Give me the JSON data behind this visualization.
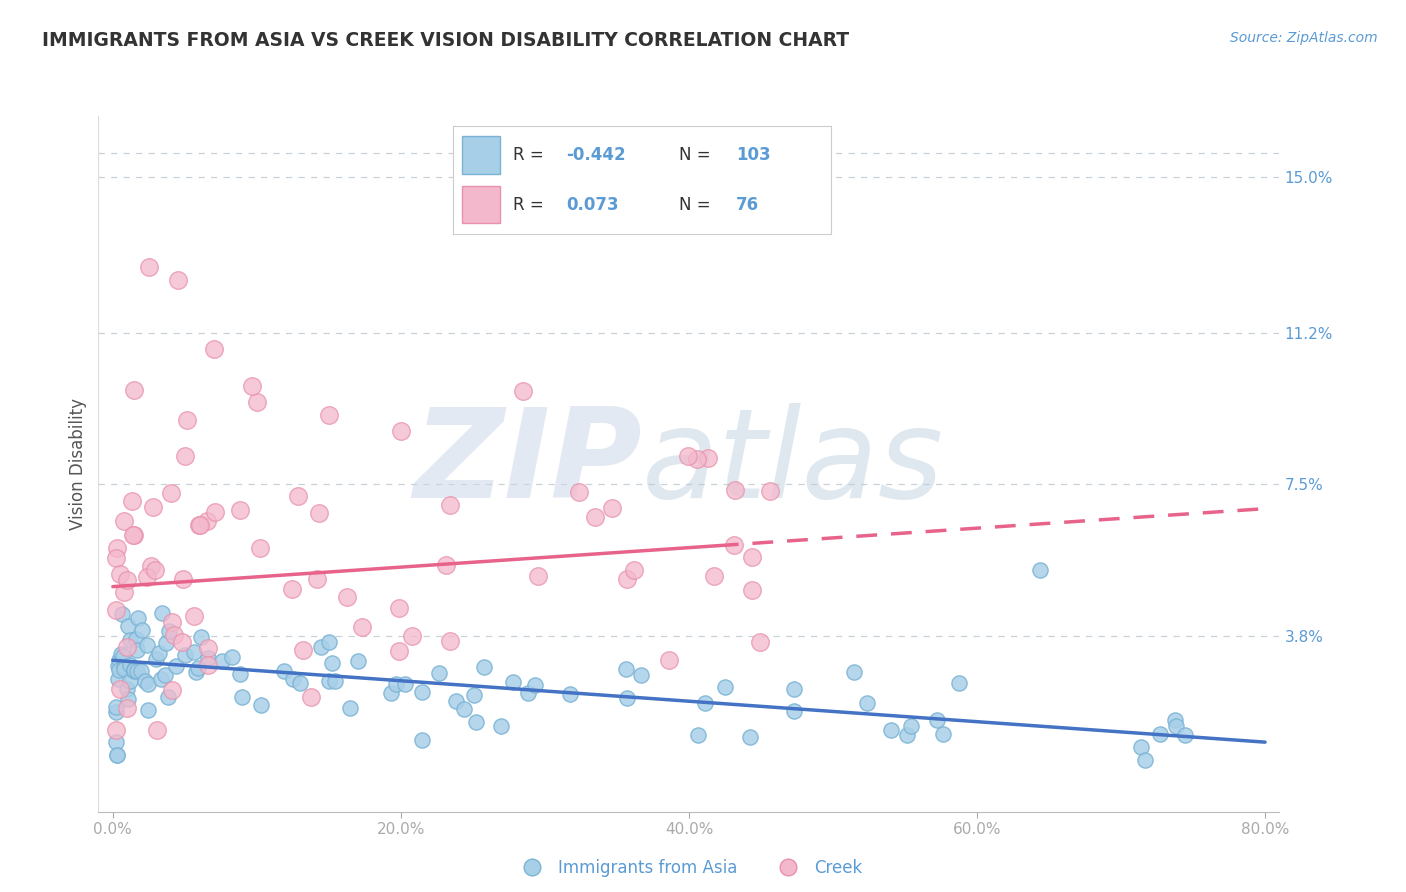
{
  "title": "IMMIGRANTS FROM ASIA VS CREEK VISION DISABILITY CORRELATION CHART",
  "source": "Source: ZipAtlas.com",
  "ylabel": "Vision Disability",
  "xlim_min": -1.0,
  "xlim_max": 81.0,
  "ylim_min": -0.5,
  "ylim_max": 16.5,
  "ytick_vals": [
    3.8,
    7.5,
    11.2,
    15.0
  ],
  "ytick_labels": [
    "3.8%",
    "7.5%",
    "11.2%",
    "15.0%"
  ],
  "xtick_vals": [
    0.0,
    20.0,
    40.0,
    60.0,
    80.0
  ],
  "xtick_labels": [
    "0.0%",
    "20.0%",
    "40.0%",
    "60.0%",
    "80.0%"
  ],
  "legend1_label": "Immigrants from Asia",
  "legend2_label": "Creek",
  "R1_text": "-0.442",
  "N1_text": "103",
  "R2_text": "0.073",
  "N2_text": "76",
  "color_blue_scatter": "#a8cfe8",
  "color_blue_edge": "#7ab3d4",
  "color_blue_line": "#4472c4",
  "color_pink_scatter": "#f4b8cc",
  "color_pink_edge": "#e891aa",
  "color_pink_line": "#e8638a",
  "color_axis_text": "#5b9bd5",
  "color_legend_text": "#5b9bd5",
  "color_title": "#333333",
  "color_grid": "#c6d9f1",
  "color_grid_dashed": "#c8d0d8",
  "background": "#ffffff",
  "watermark_zip_color": "#ccd8e8",
  "watermark_atlas_color": "#b8ccdc",
  "blue_trend_start_y": 3.2,
  "blue_trend_end_y": 1.2,
  "pink_trend_start_y": 5.0,
  "pink_trend_solid_end_x": 42.0,
  "pink_trend_solid_end_y": 6.0,
  "pink_trend_dash_end_y": 6.8
}
